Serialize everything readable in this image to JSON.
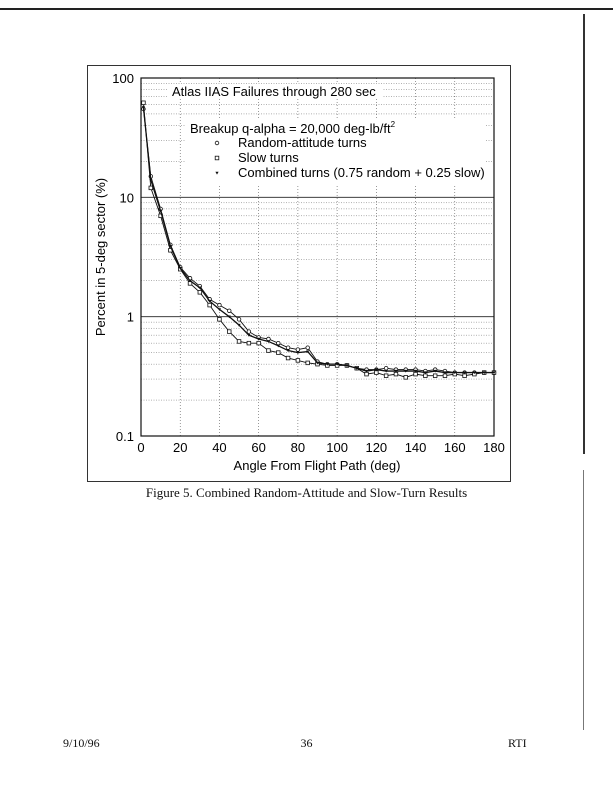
{
  "chart_data": {
    "type": "line",
    "title": "Atlas IIAS Failures through 280 sec",
    "subtitle": "Breakup q-alpha = 20,000 deg-lb/ft",
    "subtitle_superscript": "2",
    "xlabel": "Angle From Flight Path (deg)",
    "ylabel": "Percent in 5-deg sector (%)",
    "xlim": [
      0,
      180
    ],
    "ylim": [
      0.1,
      100
    ],
    "yscale": "log",
    "xticks": [
      "0",
      "20",
      "40",
      "60",
      "80",
      "100",
      "120",
      "140",
      "160",
      "180"
    ],
    "yticks": [
      "0.1",
      "1",
      "10",
      "100"
    ],
    "grid": true,
    "legend_position": "top-center",
    "series": [
      {
        "name": "Random-attitude turns",
        "marker": "circle",
        "x": [
          1.25,
          5,
          10,
          15,
          20,
          25,
          30,
          35,
          40,
          45,
          50,
          55,
          60,
          65,
          70,
          75,
          80,
          85,
          90,
          95,
          100,
          105,
          110,
          115,
          120,
          125,
          130,
          135,
          140,
          145,
          150,
          155,
          160,
          165,
          170,
          175,
          180
        ],
        "y": [
          55,
          15,
          8,
          4,
          2.6,
          2.1,
          1.8,
          1.4,
          1.25,
          1.12,
          0.95,
          0.75,
          0.67,
          0.65,
          0.6,
          0.55,
          0.53,
          0.55,
          0.42,
          0.4,
          0.4,
          0.39,
          0.37,
          0.36,
          0.36,
          0.37,
          0.36,
          0.36,
          0.36,
          0.35,
          0.36,
          0.35,
          0.34,
          0.34,
          0.34,
          0.34,
          0.34
        ]
      },
      {
        "name": "Slow turns",
        "marker": "square",
        "x": [
          1.25,
          5,
          10,
          15,
          20,
          25,
          30,
          35,
          40,
          45,
          50,
          55,
          60,
          65,
          70,
          75,
          80,
          85,
          90,
          95,
          100,
          105,
          110,
          115,
          120,
          125,
          130,
          135,
          140,
          145,
          150,
          155,
          160,
          165,
          170,
          175,
          180
        ],
        "y": [
          62,
          12,
          7,
          3.6,
          2.5,
          1.9,
          1.6,
          1.25,
          0.95,
          0.75,
          0.62,
          0.6,
          0.6,
          0.52,
          0.5,
          0.45,
          0.43,
          0.41,
          0.4,
          0.39,
          0.39,
          0.39,
          0.37,
          0.33,
          0.34,
          0.32,
          0.33,
          0.31,
          0.33,
          0.32,
          0.32,
          0.32,
          0.33,
          0.32,
          0.33,
          0.34,
          0.34
        ]
      },
      {
        "name": "Combined turns (0.75 random + 0.25 slow)",
        "marker": "triangle",
        "x": [
          1.25,
          5,
          10,
          15,
          20,
          25,
          30,
          35,
          40,
          45,
          50,
          55,
          60,
          65,
          70,
          75,
          80,
          85,
          90,
          95,
          100,
          105,
          110,
          115,
          120,
          125,
          130,
          135,
          140,
          145,
          150,
          155,
          160,
          165,
          170,
          175,
          180
        ],
        "y": [
          57,
          14,
          7.7,
          3.9,
          2.55,
          2.0,
          1.75,
          1.35,
          1.15,
          1.0,
          0.85,
          0.7,
          0.65,
          0.62,
          0.57,
          0.52,
          0.5,
          0.51,
          0.41,
          0.4,
          0.4,
          0.39,
          0.37,
          0.35,
          0.36,
          0.35,
          0.35,
          0.35,
          0.35,
          0.34,
          0.35,
          0.34,
          0.34,
          0.34,
          0.34,
          0.34,
          0.34
        ]
      }
    ]
  },
  "caption": "Figure 5. Combined Random-Attitude and Slow-Turn Results",
  "footer": {
    "date": "9/10/96",
    "page": "36",
    "org": "RTI"
  }
}
